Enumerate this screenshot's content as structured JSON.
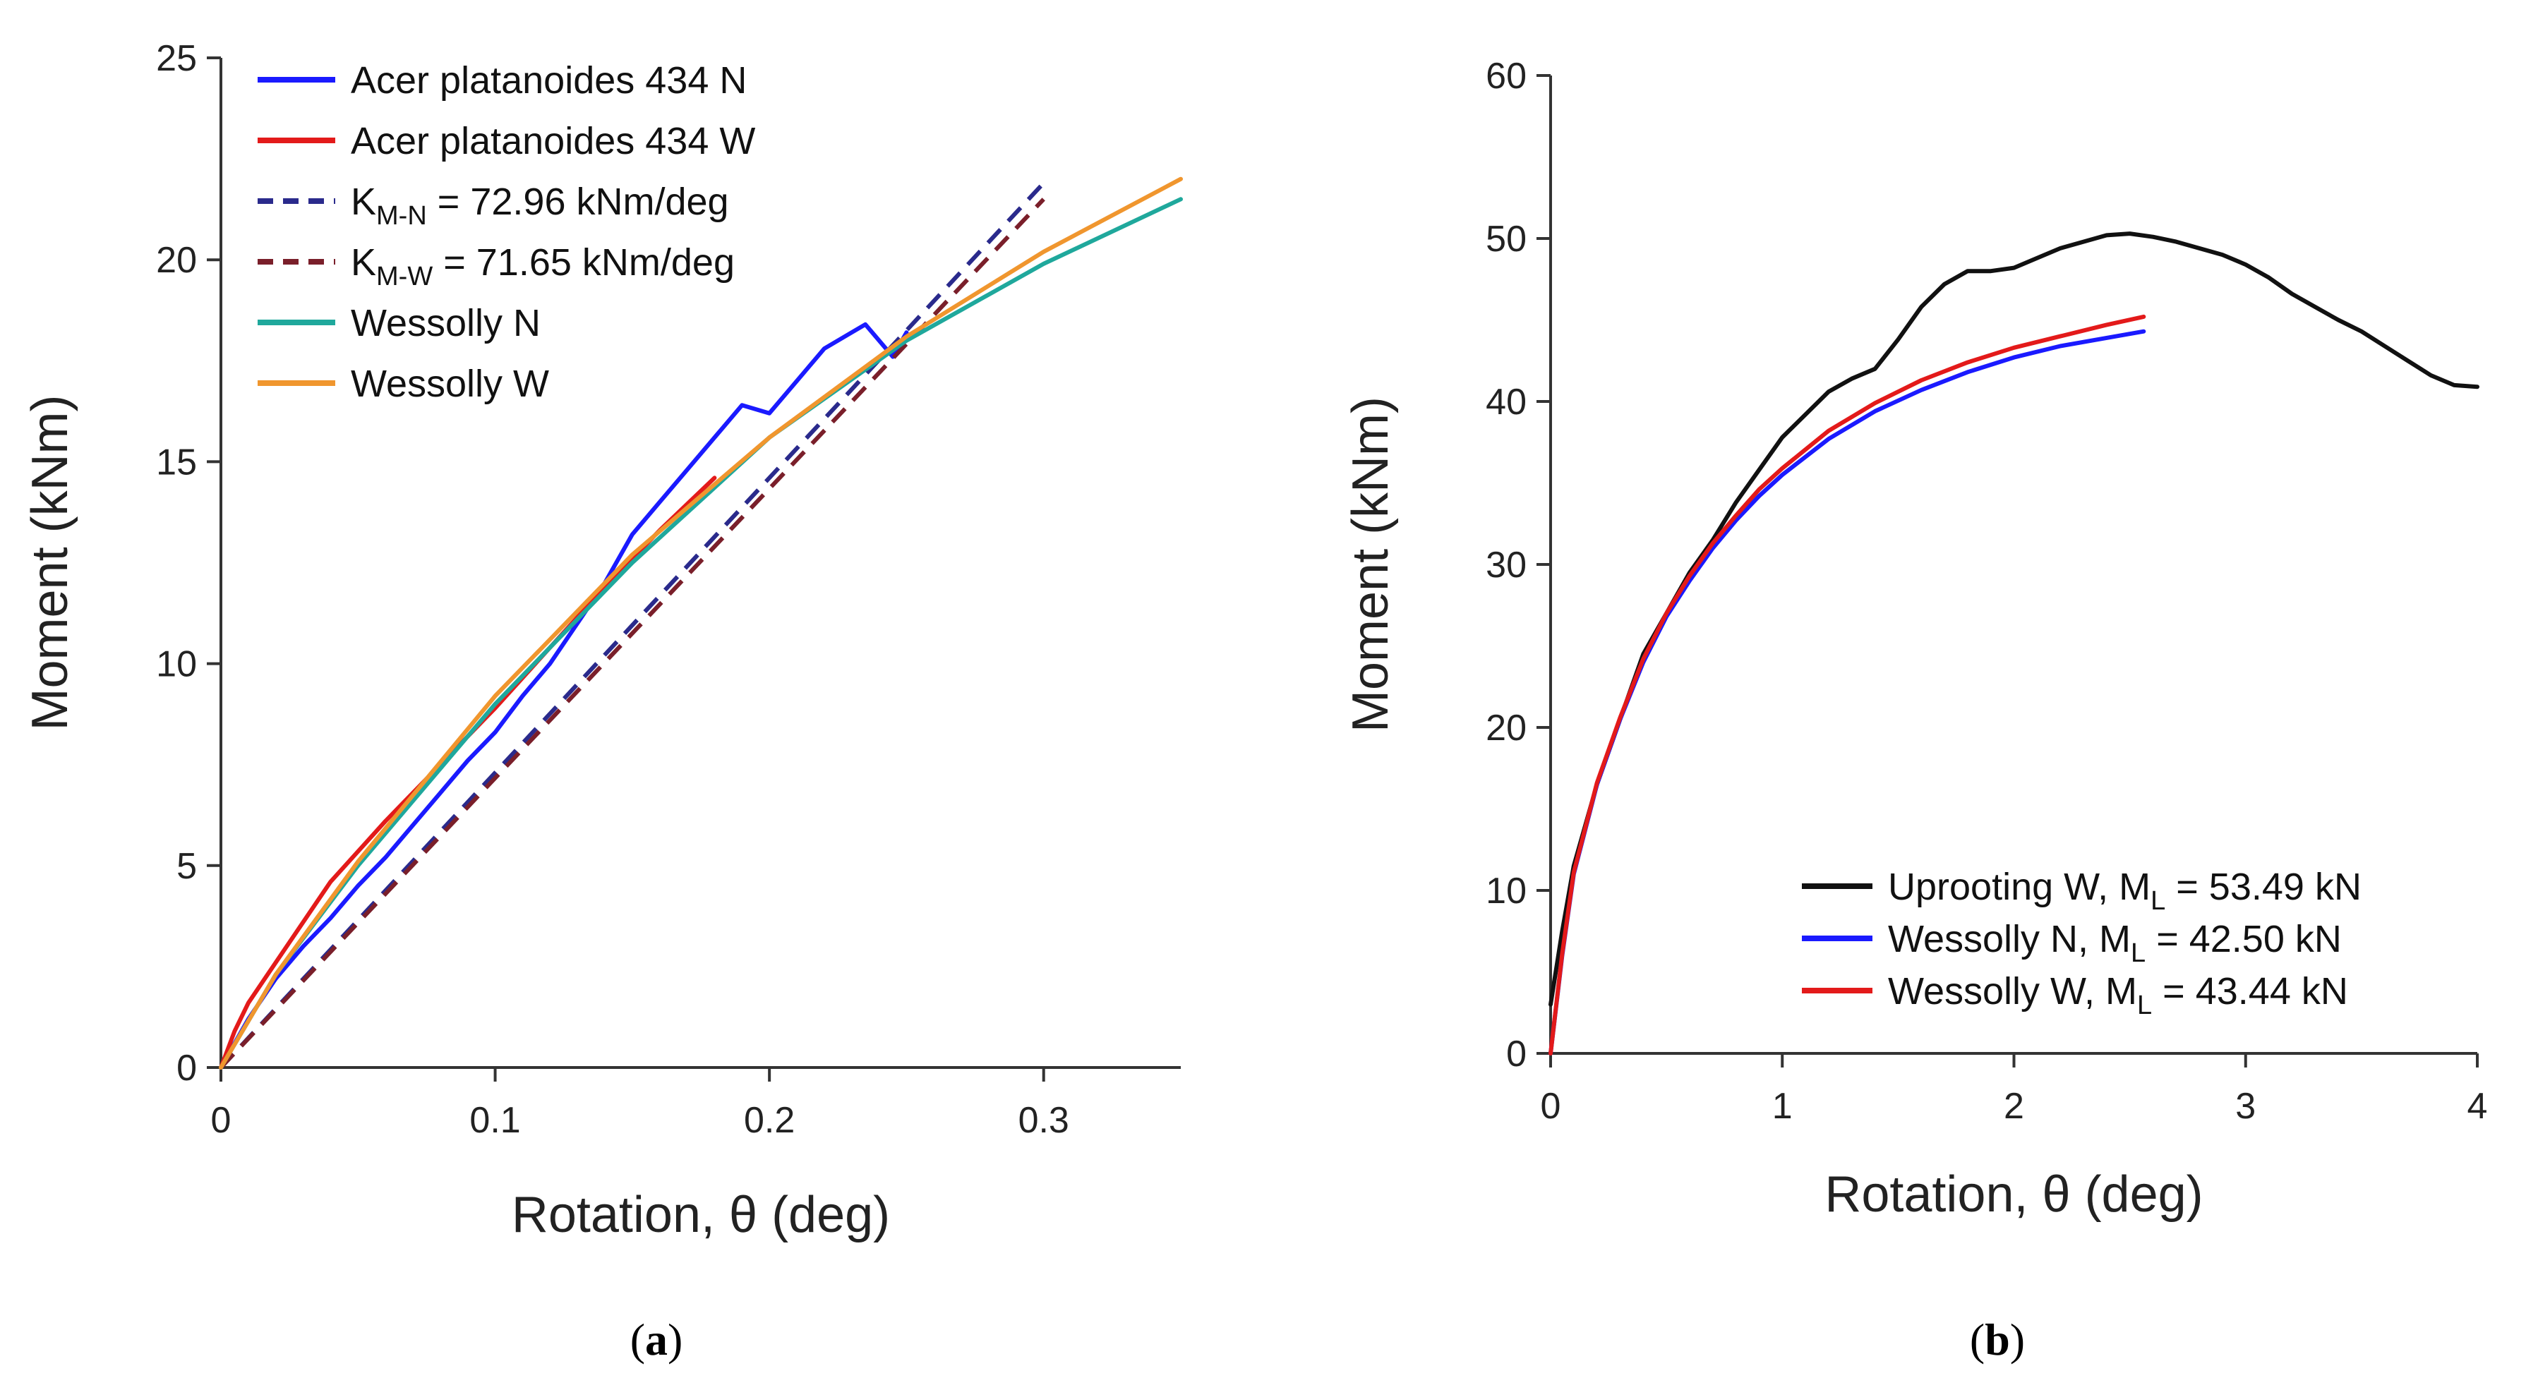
{
  "chart_data": [
    {
      "type": "line",
      "caption": "(a)",
      "xlabel": "Rotation, θ (deg)",
      "ylabel": "Moment (kNm)",
      "xlim": [
        0,
        0.35
      ],
      "ylim": [
        0,
        25
      ],
      "xticks": [
        0,
        0.1,
        0.2,
        0.3
      ],
      "xtick_labels": [
        "0",
        "0.1",
        "0.2",
        "0.3"
      ],
      "yticks": [
        0,
        5,
        10,
        15,
        20,
        25
      ],
      "ytick_labels": [
        "0",
        "5",
        "10",
        "15",
        "20",
        "25"
      ],
      "legend_position": "top-left",
      "series": [
        {
          "name": "Acer platanoides 434 N",
          "legend_main": "Acer platanoides 434 N",
          "legend_sub": "",
          "legend_tail": "",
          "color": "#1a1aff",
          "dash": "none",
          "x": [
            0.0,
            0.005,
            0.01,
            0.02,
            0.03,
            0.04,
            0.05,
            0.06,
            0.07,
            0.08,
            0.09,
            0.1,
            0.11,
            0.12,
            0.13,
            0.14,
            0.15,
            0.16,
            0.17,
            0.18,
            0.19,
            0.2,
            0.21,
            0.22,
            0.23,
            0.235,
            0.24,
            0.245,
            0.25
          ],
          "y": [
            0.0,
            0.6,
            1.2,
            2.2,
            3.0,
            3.7,
            4.5,
            5.2,
            6.0,
            6.8,
            7.6,
            8.3,
            9.2,
            10.0,
            11.0,
            12.0,
            13.2,
            14.0,
            14.8,
            15.6,
            16.4,
            16.2,
            17.0,
            17.8,
            18.2,
            18.4,
            18.0,
            17.6,
            18.2
          ]
        },
        {
          "name": "Acer platanoides 434 W",
          "legend_main": "Acer platanoides 434 W",
          "legend_sub": "",
          "legend_tail": "",
          "color": "#e31a1a",
          "dash": "none",
          "x": [
            0.0,
            0.005,
            0.01,
            0.02,
            0.04,
            0.06,
            0.08,
            0.1,
            0.12,
            0.14,
            0.16,
            0.18
          ],
          "y": [
            0.0,
            0.9,
            1.6,
            2.6,
            4.6,
            6.1,
            7.5,
            8.9,
            10.4,
            11.9,
            13.3,
            14.6
          ]
        },
        {
          "name": "K_M-N = 72.96 kNm/deg",
          "legend_main": "K",
          "legend_sub": "M-N",
          "legend_tail": " = 72.96 kNm/deg",
          "color": "#2a2a8c",
          "dash": "26,16",
          "x": [
            0.0,
            0.3
          ],
          "y": [
            0.0,
            21.9
          ]
        },
        {
          "name": "K_M-W = 71.65 kNm/deg",
          "legend_main": "K",
          "legend_sub": "M-W",
          "legend_tail": " = 71.65 kNm/deg",
          "color": "#7a1f2a",
          "dash": "26,16",
          "x": [
            0.0,
            0.3
          ],
          "y": [
            0.0,
            21.5
          ]
        },
        {
          "name": "Wessolly N",
          "legend_main": "Wessolly N",
          "legend_sub": "",
          "legend_tail": "",
          "color": "#1fa89c",
          "dash": "none",
          "x": [
            0.0,
            0.02,
            0.05,
            0.1,
            0.15,
            0.2,
            0.25,
            0.3,
            0.35
          ],
          "y": [
            0.0,
            2.3,
            5.0,
            9.0,
            12.5,
            15.6,
            18.0,
            19.9,
            21.5
          ]
        },
        {
          "name": "Wessolly W",
          "legend_main": "Wessolly W",
          "legend_sub": "",
          "legend_tail": "",
          "color": "#f0962e",
          "dash": "none",
          "x": [
            0.0,
            0.02,
            0.05,
            0.1,
            0.15,
            0.2,
            0.25,
            0.3,
            0.35
          ],
          "y": [
            0.0,
            2.3,
            5.1,
            9.2,
            12.7,
            15.6,
            18.1,
            20.2,
            22.0
          ]
        }
      ]
    },
    {
      "type": "line",
      "caption": "(b)",
      "xlabel": "Rotation, θ (deg)",
      "ylabel": "Moment (kNm)",
      "xlim": [
        0,
        4
      ],
      "ylim": [
        0,
        60
      ],
      "xticks": [
        0,
        1,
        2,
        3,
        4
      ],
      "xtick_labels": [
        "0",
        "1",
        "2",
        "3",
        "4"
      ],
      "yticks": [
        0,
        10,
        20,
        30,
        40,
        50,
        60
      ],
      "ytick_labels": [
        "0",
        "10",
        "20",
        "30",
        "40",
        "50",
        "60"
      ],
      "legend_position": "bottom-right",
      "series": [
        {
          "name": "Uprooting W, M_L = 53.49 kN",
          "legend_main": "Uprooting W, M",
          "legend_sub": "L",
          "legend_tail": " = 53.49 kN",
          "color": "#111111",
          "dash": "none",
          "x": [
            0.0,
            0.05,
            0.1,
            0.2,
            0.3,
            0.4,
            0.5,
            0.6,
            0.7,
            0.8,
            0.9,
            1.0,
            1.1,
            1.2,
            1.3,
            1.4,
            1.5,
            1.6,
            1.7,
            1.8,
            1.9,
            2.0,
            2.1,
            2.2,
            2.3,
            2.4,
            2.5,
            2.6,
            2.7,
            2.8,
            2.9,
            3.0,
            3.1,
            3.2,
            3.3,
            3.4,
            3.5,
            3.6,
            3.7,
            3.8,
            3.9,
            4.0
          ],
          "y": [
            3.0,
            7.5,
            11.5,
            16.5,
            20.5,
            24.5,
            27.0,
            29.5,
            31.5,
            33.8,
            35.8,
            37.8,
            39.2,
            40.6,
            41.4,
            42.0,
            43.8,
            45.8,
            47.2,
            48.0,
            48.0,
            48.2,
            48.8,
            49.4,
            49.8,
            50.2,
            50.3,
            50.1,
            49.8,
            49.4,
            49.0,
            48.4,
            47.6,
            46.6,
            45.8,
            45.0,
            44.3,
            43.4,
            42.5,
            41.6,
            41.0,
            40.9
          ]
        },
        {
          "name": "Wessolly N, M_L = 42.50 kN",
          "legend_main": "Wessolly N, M",
          "legend_sub": "L",
          "legend_tail": " = 42.50 kN",
          "color": "#1a1aff",
          "dash": "none",
          "x": [
            0.0,
            0.05,
            0.1,
            0.2,
            0.3,
            0.4,
            0.5,
            0.6,
            0.7,
            0.8,
            0.9,
            1.0,
            1.2,
            1.4,
            1.6,
            1.8,
            2.0,
            2.2,
            2.4,
            2.56
          ],
          "y": [
            0.0,
            6.0,
            11.0,
            16.5,
            20.5,
            24.0,
            26.8,
            29.0,
            31.0,
            32.7,
            34.2,
            35.5,
            37.7,
            39.4,
            40.7,
            41.8,
            42.7,
            43.4,
            43.9,
            44.3
          ]
        },
        {
          "name": "Wessolly W, M_L = 43.44 kN",
          "legend_main": "Wessolly W, M",
          "legend_sub": "L",
          "legend_tail": " = 43.44 kN",
          "color": "#e31a1a",
          "dash": "none",
          "x": [
            0.0,
            0.05,
            0.1,
            0.2,
            0.3,
            0.4,
            0.5,
            0.6,
            0.7,
            0.8,
            0.9,
            1.0,
            1.2,
            1.4,
            1.6,
            1.8,
            2.0,
            2.2,
            2.4,
            2.56
          ],
          "y": [
            0.0,
            6.1,
            11.1,
            16.6,
            20.6,
            24.2,
            27.0,
            29.3,
            31.3,
            33.0,
            34.6,
            35.9,
            38.2,
            39.9,
            41.3,
            42.4,
            43.3,
            44.0,
            44.7,
            45.2
          ]
        }
      ]
    }
  ]
}
